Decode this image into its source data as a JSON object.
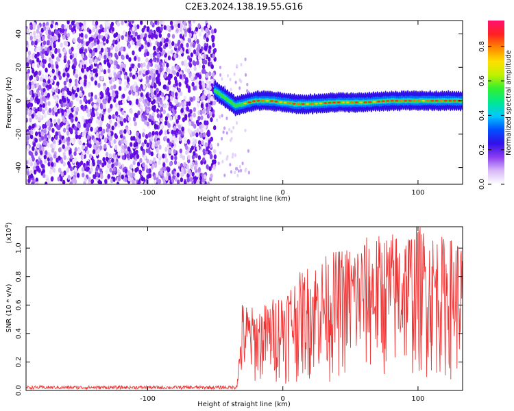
{
  "title": "C2E3.2024.138.19.55.G16",
  "colors": {
    "points": "#6a10e8",
    "snr_line": "#ee3333",
    "axis": "#000000"
  },
  "chart_data": [
    {
      "type": "heatmap",
      "xlabel": "Height of straight line (km)",
      "ylabel": "Frequency (Hz)",
      "xlim": [
        -190,
        133
      ],
      "ylim": [
        -50,
        48
      ],
      "xticks": [
        -100,
        0,
        100
      ],
      "xtick_labels": [
        "-100",
        "0",
        "100"
      ],
      "yticks": [
        -40,
        -20,
        0,
        20,
        40
      ],
      "ytick_labels": [
        "-40",
        "-20",
        "0",
        "20",
        "40"
      ],
      "grid": false,
      "colorbar": {
        "label": "Normalized spectral amplitude",
        "range": [
          0,
          0.95
        ],
        "ticks": [
          0.0,
          0.2,
          0.4,
          0.6,
          0.8
        ],
        "tick_labels": [
          "0.0",
          "0.2",
          "0.4",
          "0.6",
          "0.8"
        ],
        "colors": [
          "#ffffff",
          "#d8b8f8",
          "#8a3cf0",
          "#3010e8",
          "#0050ff",
          "#00c8ff",
          "#00e890",
          "#30f030",
          "#c0f000",
          "#ffe000",
          "#ff8800",
          "#ff2020",
          "#ff1070"
        ]
      },
      "noise_region_x": [
        -190,
        -50
      ],
      "signal_trace": {
        "x": [
          -50,
          -45,
          -40,
          -35,
          -30,
          -20,
          -10,
          0,
          10,
          20,
          40,
          60,
          80,
          100,
          120,
          133
        ],
        "y": [
          6,
          3,
          0,
          -3,
          -2,
          0,
          0,
          -1,
          -2,
          -2,
          -1,
          -1,
          0,
          0,
          0,
          0
        ]
      }
    },
    {
      "type": "line",
      "xlabel": "Height of straight line (km)",
      "ylabel": "SNR (10 * v/v)",
      "y_multiplier": "(x10",
      "y_multiplier_exp": "4",
      "y_multiplier_close": ")",
      "xlim": [
        -190,
        133
      ],
      "ylim": [
        0,
        1.15
      ],
      "xticks": [
        -100,
        0,
        100
      ],
      "xtick_labels": [
        "-100",
        "0",
        "100"
      ],
      "yticks": [
        0.0,
        0.2,
        0.4,
        0.6,
        0.8,
        1.0
      ],
      "ytick_labels": [
        "0.0",
        "0.2",
        "0.4",
        "0.6",
        "0.8",
        "1.0"
      ],
      "grid": false,
      "envelope": {
        "x": [
          -190,
          -35,
          -33,
          -30,
          -20,
          -10,
          0,
          20,
          40,
          60,
          80,
          100,
          120,
          133
        ],
        "y": [
          0.03,
          0.03,
          0.1,
          0.35,
          0.32,
          0.35,
          0.4,
          0.5,
          0.55,
          0.6,
          0.62,
          0.65,
          0.6,
          0.6
        ]
      }
    }
  ]
}
